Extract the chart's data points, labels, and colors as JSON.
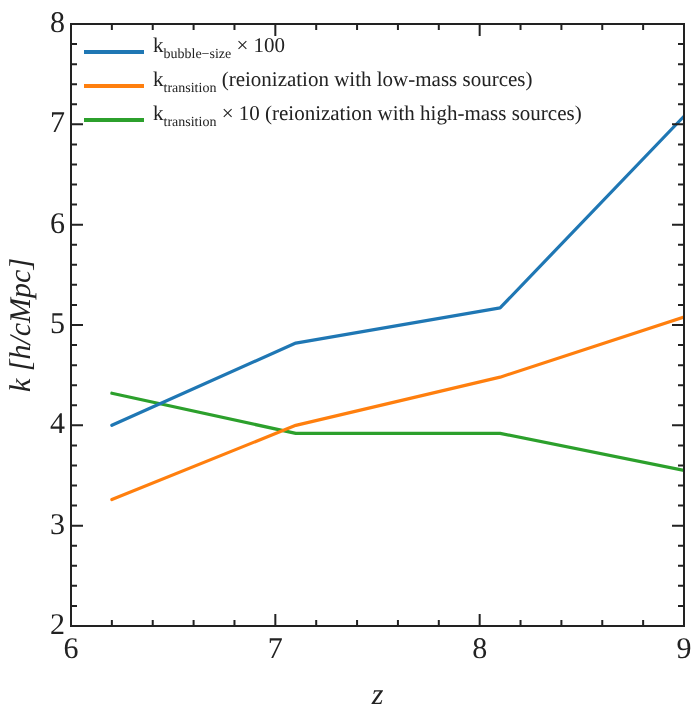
{
  "chart_data": {
    "type": "line",
    "xlabel": "z",
    "ylabel": "k [h/cMpc]",
    "x": [
      6.2,
      7.1,
      8.1,
      9
    ],
    "xlim": [
      6,
      9
    ],
    "xticks": [
      6,
      7,
      8,
      9
    ],
    "ylim": [
      2,
      8
    ],
    "yticks": [
      2,
      3,
      4,
      5,
      6,
      7,
      8
    ],
    "grid": false,
    "legend": "top left",
    "marker": "none",
    "line_style": "solid",
    "series": [
      {
        "name": "k$_{bubble−size}$ × 100",
        "color": "#1f77b4",
        "values": [
          4.0,
          4.82,
          5.17,
          7.08
        ]
      },
      {
        "name": "k$_{transition}$ (reionization with low-mass sources)",
        "color": "#ff7f0e",
        "values": [
          3.26,
          4.0,
          4.48,
          5.08
        ]
      },
      {
        "name": "k$_{transition}$ × 10 (reionization with high-mass sources)",
        "color": "#2ca02c",
        "values": [
          4.32,
          3.92,
          3.92,
          3.55
        ]
      }
    ]
  }
}
